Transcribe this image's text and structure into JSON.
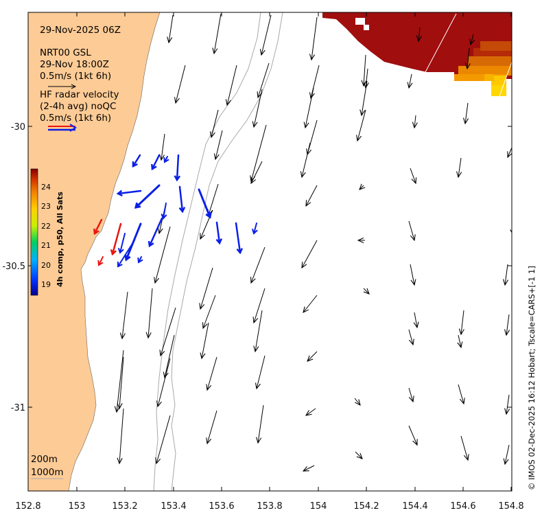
{
  "map": {
    "date_label": "29-Nov-2025 06Z",
    "model_legend": {
      "line1": "NRT00 GSL",
      "line2": "29-Nov 18:00Z",
      "line3": "0.5m/s (1kt 6h)"
    },
    "radar_legend": {
      "line1": "HF radar velocity",
      "line2": "(2-4h avg) noQC",
      "line3": "0.5m/s (1kt 6h)"
    },
    "colorbar": {
      "title": "4h comp, p50, All Sats",
      "ticks": [
        "19",
        "20",
        "21",
        "22",
        "23",
        "24"
      ]
    },
    "depth_legend": {
      "contour1": "200m",
      "contour2": "1000m"
    },
    "credit": "© IMOS 02-Dec-2025 16:12 Hobart; Tscale=CARS+[-1 1]",
    "x_ticks": [
      "152.8",
      "153",
      "153.2",
      "153.4",
      "153.6",
      "153.8",
      "154",
      "154.2",
      "154.4",
      "154.6",
      "154.8"
    ],
    "y_ticks": [
      "-30",
      "-30.5",
      "-31"
    ],
    "colors": {
      "land": "#fdcb96",
      "radar_blue": "#0a1fe6",
      "radar_red": "#e8150f",
      "sst_dark": "#a00e0e",
      "sst_orange": "#f08a00",
      "sst_yellow": "#ffd700",
      "contour": "#a8a8a8"
    },
    "sst_range_c": [
      18.5,
      24.8
    ]
  }
}
